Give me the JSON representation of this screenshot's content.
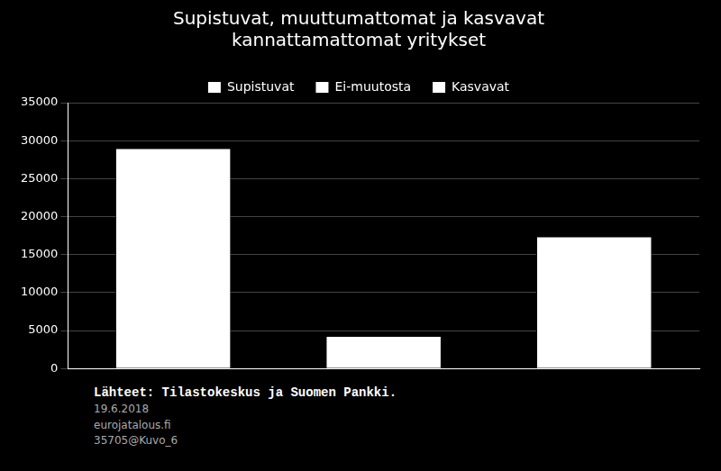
{
  "chart_data": {
    "type": "bar",
    "title": "Supistuvat, muuttumattomat ja kasvavat\nkannattamattomat yritykset",
    "categories": [
      "Supistuvat",
      "Ei-muutosta",
      "Kasvavat"
    ],
    "values": [
      29000,
      4300,
      17400
    ],
    "colors": [
      "#ffffff",
      "#ffffff",
      "#ffffff"
    ],
    "ylim": [
      0,
      35000
    ],
    "yticks": [
      0,
      5000,
      10000,
      15000,
      20000,
      25000,
      30000,
      35000
    ],
    "grid": true,
    "legend": "top",
    "tick_labels": "y",
    "annotations": [
      "Lähteet:  Tilastokeskus ja Suomen Pankki.",
      "19.6.2018",
      "eurojatalous.fi",
      "35705@Kuvo_6"
    ]
  }
}
